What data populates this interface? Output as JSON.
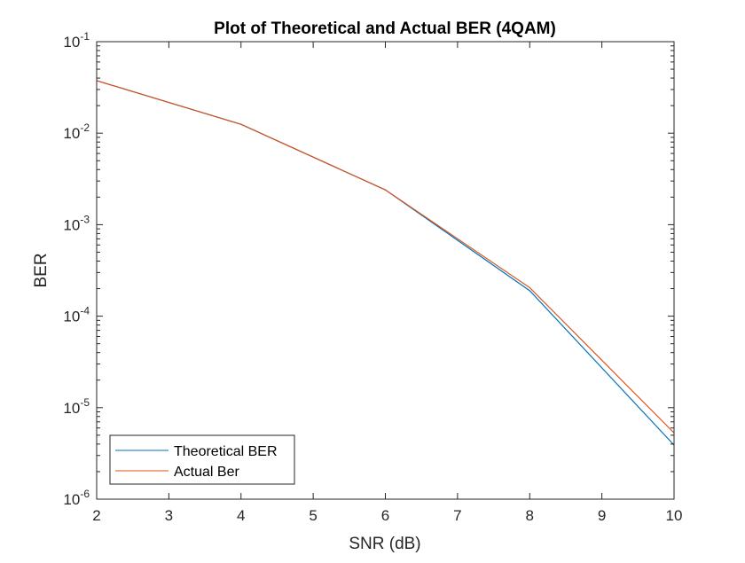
{
  "chart_data": {
    "type": "line",
    "title": "Plot of Theoretical and Actual BER (4QAM)",
    "xlabel": "SNR (dB)",
    "ylabel": "BER",
    "x_scale": "linear",
    "y_scale": "log",
    "xlim": [
      2,
      10
    ],
    "ylim": [
      1e-06,
      0.1
    ],
    "x_ticks": [
      2,
      3,
      4,
      5,
      6,
      7,
      8,
      9,
      10
    ],
    "y_ticks": [
      {
        "value": 1e-06,
        "exp": "-6"
      },
      {
        "value": 1e-05,
        "exp": "-5"
      },
      {
        "value": 0.0001,
        "exp": "-4"
      },
      {
        "value": 0.001,
        "exp": "-3"
      },
      {
        "value": 0.01,
        "exp": "-2"
      },
      {
        "value": 0.1,
        "exp": "-1"
      }
    ],
    "y_tick_base": "10",
    "grid": false,
    "legend_position": "bottom-left",
    "x": [
      2,
      4,
      6,
      8,
      10
    ],
    "series": [
      {
        "name": "Theoretical BER",
        "color": "#0072BD",
        "values": [
          0.0375,
          0.0125,
          0.0024,
          0.00019,
          3.9e-06
        ]
      },
      {
        "name": "Actual Ber",
        "color": "#D95319",
        "values": [
          0.0375,
          0.0125,
          0.0024,
          0.000205,
          5.3e-06
        ]
      }
    ]
  }
}
